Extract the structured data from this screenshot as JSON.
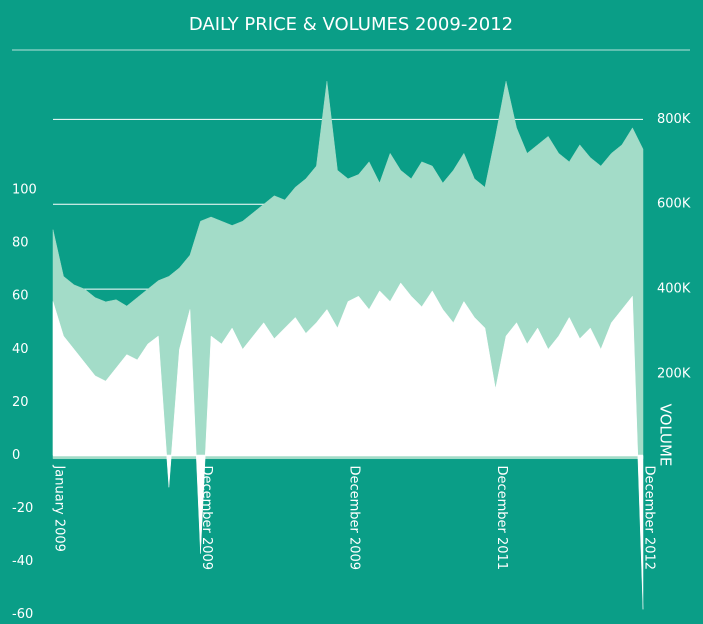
{
  "chart_data": {
    "type": "area",
    "title": "DAILY PRICE & VOLUMES 2009-2012",
    "y2label": "VOLUME",
    "categories": [
      "January 2009",
      null,
      null,
      null,
      null,
      null,
      null,
      null,
      null,
      null,
      null,
      null,
      null,
      null,
      "December 2009",
      null,
      null,
      null,
      null,
      null,
      null,
      null,
      null,
      null,
      null,
      null,
      null,
      null,
      "December 2009",
      null,
      null,
      null,
      null,
      null,
      null,
      null,
      null,
      null,
      null,
      null,
      null,
      null,
      "December 2011",
      null,
      null,
      null,
      null,
      null,
      null,
      null,
      null,
      null,
      null,
      null,
      null,
      null,
      "December 2012"
    ],
    "series": [
      {
        "color": "#a3dcc8",
        "axis": "y2",
        "values": [
          540000,
          430000,
          410000,
          400000,
          380000,
          370000,
          375000,
          360000,
          380000,
          400000,
          420000,
          430000,
          450000,
          480000,
          560000,
          570000,
          560000,
          550000,
          560000,
          580000,
          600000,
          620000,
          610000,
          640000,
          660000,
          690000,
          890000,
          680000,
          660000,
          670000,
          700000,
          650000,
          720000,
          680000,
          660000,
          700000,
          690000,
          650000,
          680000,
          720000,
          660000,
          640000,
          760000,
          890000,
          780000,
          720000,
          740000,
          760000,
          720000,
          700000,
          740000,
          710000,
          690000,
          720000,
          740000,
          780000,
          730000
        ]
      },
      {
        "color": "#ffffff",
        "values": [
          58,
          45,
          40,
          35,
          30,
          28,
          33,
          38,
          36,
          42,
          45,
          -12,
          40,
          55,
          -37,
          45,
          42,
          48,
          40,
          45,
          50,
          44,
          48,
          52,
          46,
          50,
          55,
          48,
          58,
          60,
          55,
          62,
          58,
          65,
          60,
          56,
          62,
          55,
          50,
          58,
          52,
          48,
          25,
          45,
          50,
          42,
          48,
          40,
          45,
          52,
          44,
          48,
          40,
          50,
          55,
          60,
          -58
        ]
      }
    ],
    "ylim": [
      -62,
      149
    ],
    "yticks": [
      -60,
      -40,
      -20,
      0,
      20,
      40,
      60,
      80,
      100
    ],
    "y2lim": [
      -380000,
      940000
    ],
    "y2ticks": [
      {
        "value": 200000,
        "label": "200K"
      },
      {
        "value": 400000,
        "label": "400K"
      },
      {
        "value": 600000,
        "label": "600K"
      },
      {
        "value": 800000,
        "label": "800K"
      }
    ],
    "grid": true
  }
}
